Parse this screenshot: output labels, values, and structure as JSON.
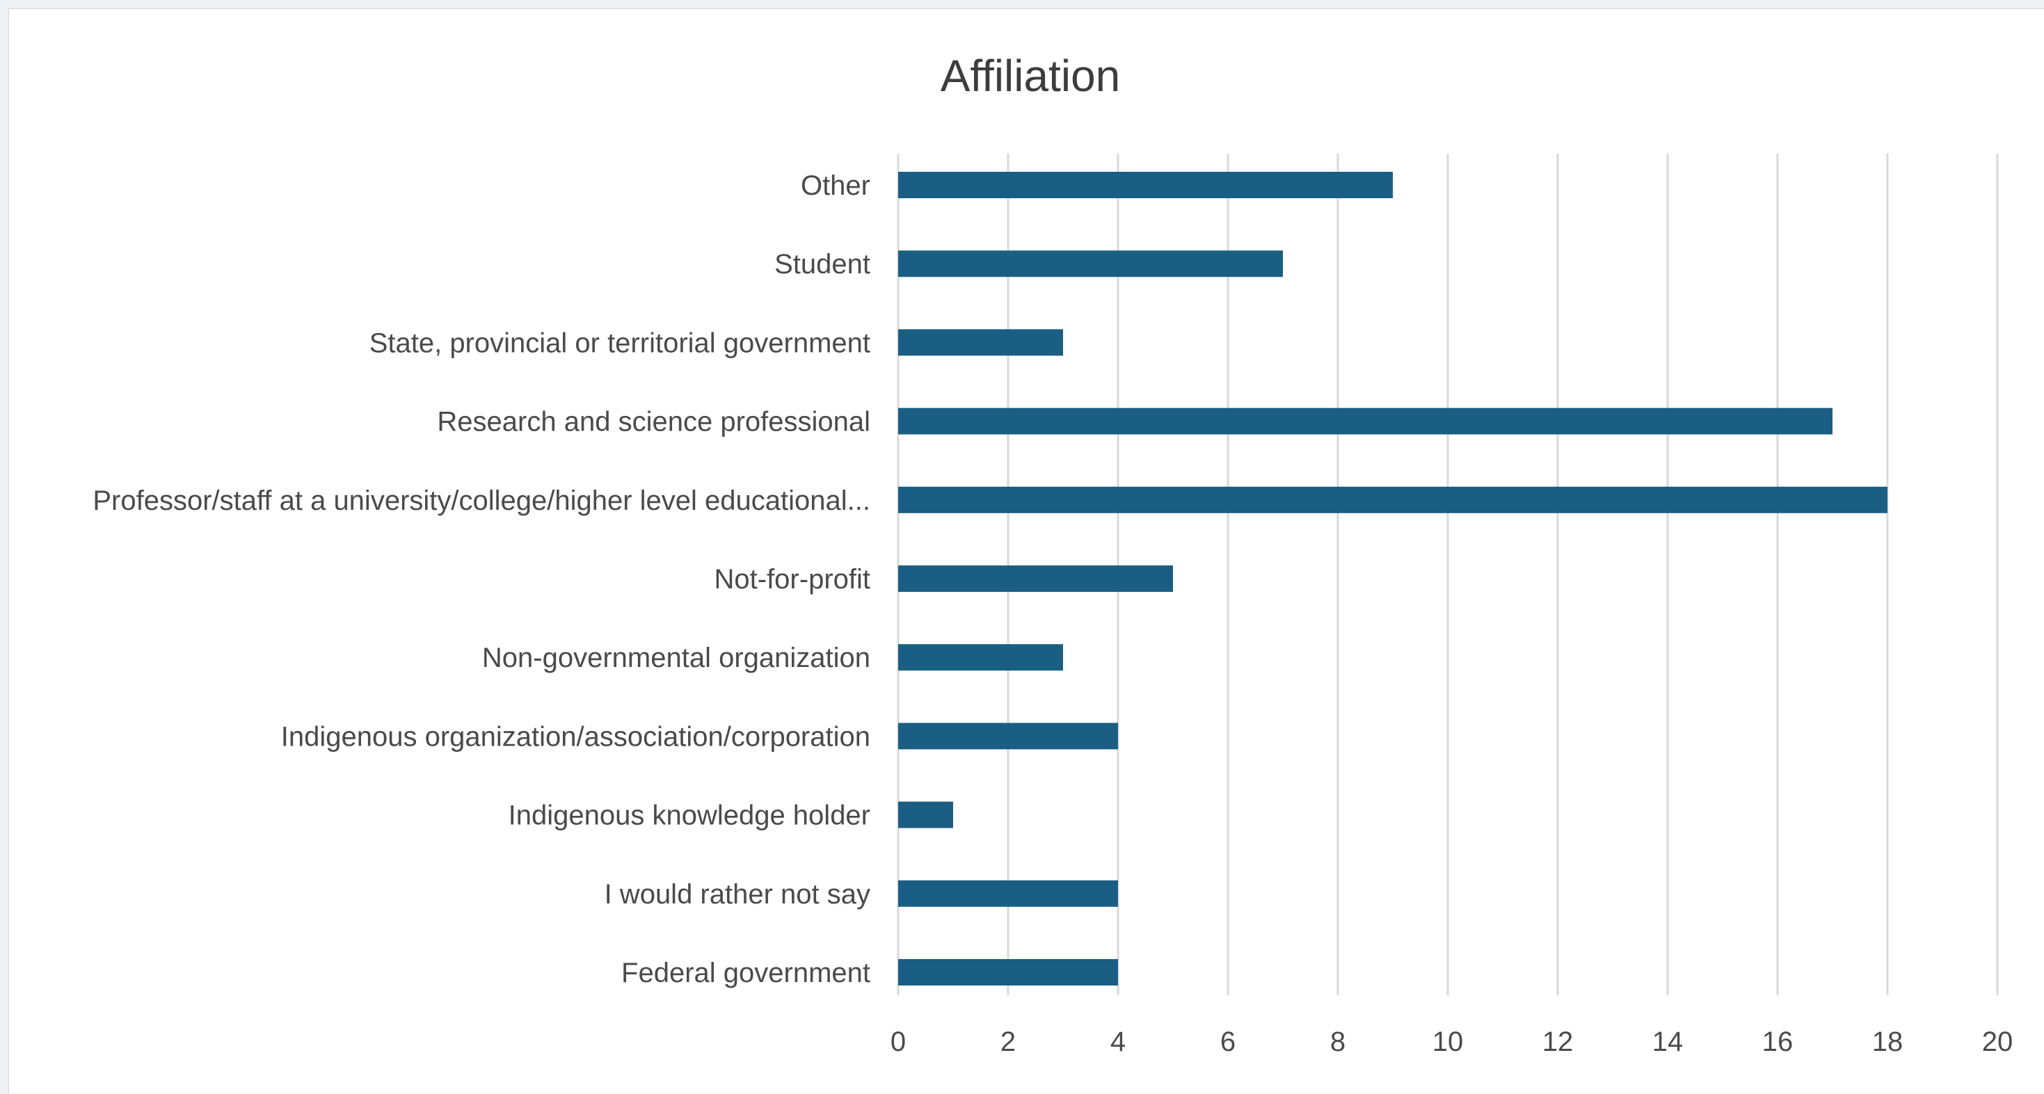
{
  "chart_data": {
    "type": "bar",
    "orientation": "horizontal",
    "title": "Affiliation",
    "xlabel": "",
    "ylabel": "",
    "categories": [
      "Other",
      "Student",
      "State, provincial or territorial government",
      "Research and science professional",
      "Professor/staff at a university/college/higher level educational...",
      "Not-for-profit",
      "Non-governmental organization",
      "Indigenous organization/association/corporation",
      "Indigenous knowledge holder",
      "I would rather not say",
      "Federal government"
    ],
    "values": [
      9,
      7,
      3,
      17,
      18,
      5,
      3,
      4,
      1,
      4,
      4
    ],
    "xlim": [
      0,
      20
    ],
    "xticks": [
      "0",
      "2",
      "4",
      "6",
      "8",
      "10",
      "12",
      "14",
      "16",
      "18",
      "20"
    ],
    "grid": true,
    "legend": "none",
    "bar_color": "#1b5e83",
    "grid_color": "#d9d9d9"
  }
}
